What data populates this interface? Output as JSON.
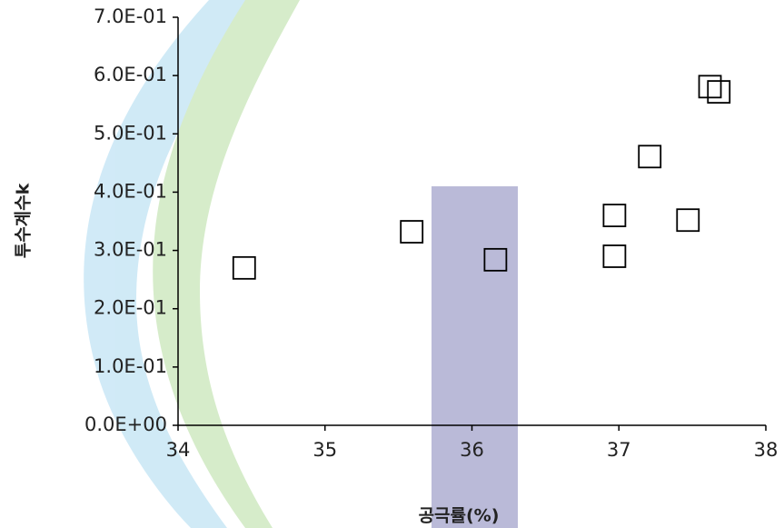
{
  "chart_data": {
    "type": "scatter",
    "x_label": "공극률(%)",
    "y_label": "투수계수k",
    "x": [
      34.45,
      35.59,
      36.16,
      36.97,
      36.97,
      37.21,
      37.47,
      37.62,
      37.68
    ],
    "values": [
      0.27,
      0.332,
      0.284,
      0.36,
      0.29,
      0.461,
      0.352,
      0.581,
      0.572
    ],
    "marker": "square",
    "color": "#000000",
    "xlim": [
      34,
      38
    ],
    "xticks": [
      34,
      35,
      36,
      37,
      38
    ],
    "ylim": [
      0,
      0.7
    ],
    "yticks": [
      {
        "value": 0,
        "label": "0.0E+00"
      },
      {
        "value": 0.1,
        "label": "1.0E-01"
      },
      {
        "value": 0.2,
        "label": "2.0E-01"
      },
      {
        "value": 0.3,
        "label": "3.0E-01"
      },
      {
        "value": 0.4,
        "label": "4.0E-01"
      },
      {
        "value": 0.5,
        "label": "5.0E-01"
      },
      {
        "value": 0.6,
        "label": "6.0E-01"
      },
      {
        "value": 0.7,
        "label": "7.0E-01"
      }
    ],
    "grid": false
  }
}
